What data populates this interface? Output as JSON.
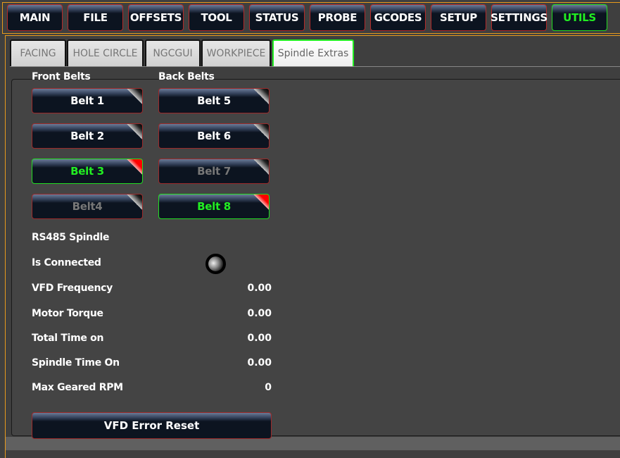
{
  "nav": [
    {
      "label": "MAIN"
    },
    {
      "label": "FILE"
    },
    {
      "label": "OFFSETS"
    },
    {
      "label": "TOOL"
    },
    {
      "label": "STATUS"
    },
    {
      "label": "PROBE"
    },
    {
      "label": "GCODES"
    },
    {
      "label": "SETUP"
    },
    {
      "label": "SETTINGS"
    },
    {
      "label": "UTILS",
      "active": true
    }
  ],
  "tabs": [
    {
      "label": "FACING"
    },
    {
      "label": "HOLE CIRCLE"
    },
    {
      "label": "NGCGUI"
    },
    {
      "label": "WORKPIECE"
    },
    {
      "label": "Spindle Extras",
      "active": true
    }
  ],
  "front_belts_label": "Front Belts",
  "back_belts_label": "Back Belts",
  "belts": [
    {
      "label": "Belt 1",
      "state": "normal"
    },
    {
      "label": "Belt 2",
      "state": "normal"
    },
    {
      "label": "Belt 3",
      "state": "checked"
    },
    {
      "label": "Belt4",
      "state": "disabled"
    },
    {
      "label": "Belt 5",
      "state": "normal"
    },
    {
      "label": "Belt 6",
      "state": "normal"
    },
    {
      "label": "Belt 7",
      "state": "disabled"
    },
    {
      "label": "Belt 8",
      "state": "checked"
    }
  ],
  "rs485": {
    "title": "RS485 Spindle",
    "connected_label": "Is Connected",
    "connected": false,
    "rows": [
      {
        "label": "VFD Frequency",
        "value": "0.00"
      },
      {
        "label": "Motor Torque",
        "value": "0.00"
      },
      {
        "label": "Total Time on",
        "value": "0.00"
      },
      {
        "label": "Spindle Time On",
        "value": "0.00"
      },
      {
        "label": "Max Geared RPM",
        "value": "0"
      }
    ]
  },
  "reset_label": "VFD Error Reset",
  "colors": {
    "accent_active": "#22ee22",
    "frame": "#e89a1c",
    "button_border": "#b52a2a"
  }
}
